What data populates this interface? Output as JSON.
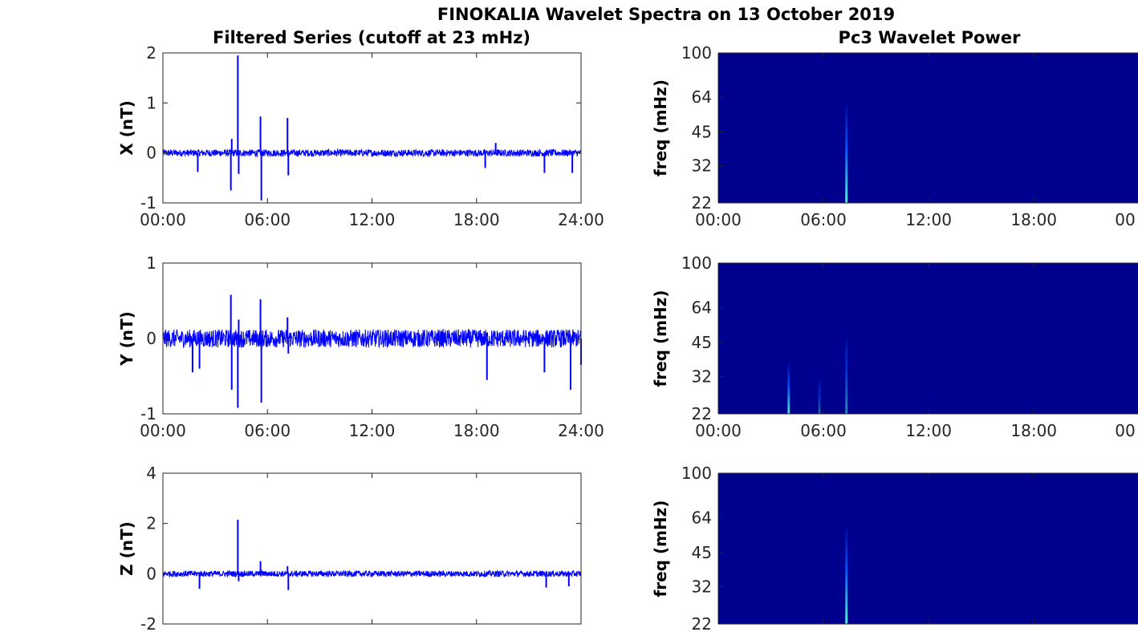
{
  "figure": {
    "title": "FINOKALIA Wavelet Spectra on 13 October 2019",
    "left_column_title": "Filtered Series (cutoff at 23 mHz)",
    "right_column_title": "Pc3 Wavelet Power"
  },
  "colors": {
    "series_line": "#0000ff",
    "spectrogram_background": "#00008f",
    "spectrogram_peak": "#40ffbf",
    "axes": "#262626"
  },
  "chart_data": [
    {
      "type": "line",
      "title": "Filtered Series (cutoff at 23 mHz)",
      "xlabel": "",
      "ylabel": "X (nT)",
      "xlim": [
        0,
        24
      ],
      "ylim": [
        -1,
        2
      ],
      "x_ticks": [
        "00:00",
        "06:00",
        "12:00",
        "18:00",
        "24:00"
      ],
      "y_ticks": [
        "-1",
        "0",
        "1",
        "2"
      ],
      "noise_band": 0.07,
      "spikes": [
        {
          "t": 3.9,
          "v": -0.75
        },
        {
          "t": 3.95,
          "v": 0.28
        },
        {
          "t": 4.3,
          "v": 1.95
        },
        {
          "t": 4.35,
          "v": -0.42
        },
        {
          "t": 5.6,
          "v": 0.73
        },
        {
          "t": 5.65,
          "v": -0.95
        },
        {
          "t": 7.15,
          "v": 0.7
        },
        {
          "t": 7.2,
          "v": -0.45
        },
        {
          "t": 2.0,
          "v": -0.38
        },
        {
          "t": 18.5,
          "v": -0.3
        },
        {
          "t": 19.1,
          "v": 0.2
        },
        {
          "t": 21.9,
          "v": -0.4
        },
        {
          "t": 23.5,
          "v": -0.4
        }
      ]
    },
    {
      "type": "line",
      "xlabel": "",
      "ylabel": "Y (nT)",
      "xlim": [
        0,
        24
      ],
      "ylim": [
        -1,
        1
      ],
      "x_ticks": [
        "00:00",
        "06:00",
        "12:00",
        "18:00",
        "24:00"
      ],
      "y_ticks": [
        "-1",
        "0",
        "1"
      ],
      "noise_band": 0.12,
      "spikes": [
        {
          "t": 3.9,
          "v": 0.58
        },
        {
          "t": 3.95,
          "v": -0.68
        },
        {
          "t": 4.3,
          "v": -0.92
        },
        {
          "t": 4.35,
          "v": 0.25
        },
        {
          "t": 5.6,
          "v": 0.52
        },
        {
          "t": 5.65,
          "v": -0.85
        },
        {
          "t": 7.15,
          "v": 0.28
        },
        {
          "t": 7.2,
          "v": -0.2
        },
        {
          "t": 1.7,
          "v": -0.45
        },
        {
          "t": 2.1,
          "v": -0.4
        },
        {
          "t": 18.6,
          "v": -0.55
        },
        {
          "t": 21.9,
          "v": -0.45
        },
        {
          "t": 23.4,
          "v": -0.68
        },
        {
          "t": 24.0,
          "v": -0.35
        }
      ]
    },
    {
      "type": "line",
      "xlabel": "",
      "ylabel": "Z (nT)",
      "xlim": [
        0,
        24
      ],
      "ylim": [
        -2,
        4
      ],
      "x_ticks": [
        "00:00",
        "06:00",
        "12:00",
        "18:00",
        "24:00"
      ],
      "y_ticks": [
        "-2",
        "0",
        "2",
        "4"
      ],
      "noise_band": 0.12,
      "spikes": [
        {
          "t": 4.3,
          "v": 2.15
        },
        {
          "t": 4.35,
          "v": -0.3
        },
        {
          "t": 5.6,
          "v": 0.5
        },
        {
          "t": 7.15,
          "v": 0.3
        },
        {
          "t": 7.2,
          "v": -0.65
        },
        {
          "t": 2.1,
          "v": -0.6
        },
        {
          "t": 22.0,
          "v": -0.55
        },
        {
          "t": 23.3,
          "v": -0.5
        }
      ]
    },
    {
      "type": "heatmap",
      "title": "Pc3 Wavelet Power",
      "ylabel": "freq (mHz)",
      "xlim": [
        0,
        24
      ],
      "ylim": [
        22,
        100
      ],
      "yscale": "log",
      "x_ticks": [
        "00:00",
        "06:00",
        "12:00",
        "18:00",
        "00"
      ],
      "y_ticks": [
        "22",
        "32",
        "45",
        "64",
        "100"
      ],
      "peaks": [
        {
          "t": 7.1,
          "f_top": 62,
          "intensity": 1.0
        }
      ]
    },
    {
      "type": "heatmap",
      "ylabel": "freq (mHz)",
      "xlim": [
        0,
        24
      ],
      "ylim": [
        22,
        100
      ],
      "yscale": "log",
      "x_ticks": [
        "00:00",
        "06:00",
        "12:00",
        "18:00",
        "00"
      ],
      "y_ticks": [
        "22",
        "32",
        "45",
        "64",
        "100"
      ],
      "peaks": [
        {
          "t": 3.9,
          "f_top": 37,
          "intensity": 0.9
        },
        {
          "t": 5.6,
          "f_top": 31,
          "intensity": 0.4
        },
        {
          "t": 7.1,
          "f_top": 48,
          "intensity": 0.55
        }
      ]
    },
    {
      "type": "heatmap",
      "ylabel": "freq (mHz)",
      "xlim": [
        0,
        24
      ],
      "ylim": [
        22,
        100
      ],
      "yscale": "log",
      "x_ticks": [
        "",
        "",
        "",
        "",
        ""
      ],
      "y_ticks": [
        "22",
        "32",
        "45",
        "64",
        "100"
      ],
      "peaks": [
        {
          "t": 7.1,
          "f_top": 60,
          "intensity": 1.0
        }
      ]
    }
  ]
}
